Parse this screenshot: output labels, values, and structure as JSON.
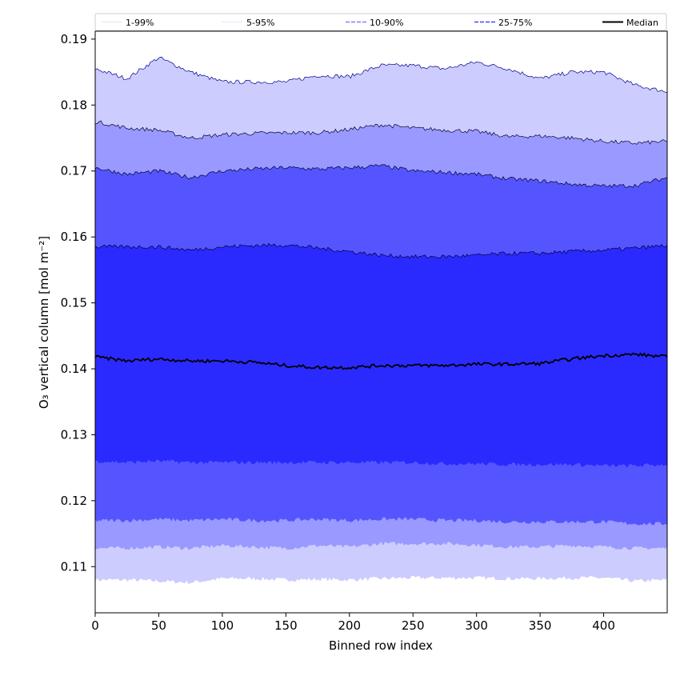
{
  "chart_data": {
    "type": "area",
    "title": "",
    "xlabel": "Binned row index",
    "ylabel": "O₃ vertical column [mol m⁻²]",
    "xlim": [
      0,
      450
    ],
    "ylim": [
      0.103,
      0.1912
    ],
    "x_ticks": [
      0,
      50,
      100,
      150,
      200,
      250,
      300,
      350,
      400
    ],
    "y_ticks": [
      0.11,
      0.12,
      0.13,
      0.14,
      0.15,
      0.16,
      0.17,
      0.18,
      0.19
    ],
    "grid": false,
    "legend_position": "top",
    "legend": [
      {
        "label": "1-99%",
        "color": "#ccccff"
      },
      {
        "label": "5-95%",
        "color": "#9999ff"
      },
      {
        "label": "10-90%",
        "color": "#5555ff"
      },
      {
        "label": "25-75%",
        "color": "#2a2aff"
      },
      {
        "label": "Median",
        "color": "#000000"
      }
    ],
    "x": [
      0,
      25,
      50,
      75,
      100,
      125,
      150,
      175,
      200,
      225,
      250,
      275,
      300,
      325,
      350,
      375,
      400,
      425,
      450
    ],
    "bands": [
      {
        "name": "1-99%",
        "color": "#ccccff",
        "lower": [
          0.108,
          0.108,
          0.1078,
          0.1076,
          0.1082,
          0.1082,
          0.108,
          0.1081,
          0.108,
          0.1082,
          0.1083,
          0.1083,
          0.1083,
          0.1082,
          0.1082,
          0.1083,
          0.1083,
          0.1078,
          0.108
        ],
        "upper": [
          0.1855,
          0.184,
          0.1872,
          0.185,
          0.1835,
          0.1835,
          0.1835,
          0.1845,
          0.1843,
          0.186,
          0.186,
          0.1855,
          0.1865,
          0.1855,
          0.184,
          0.185,
          0.185,
          0.183,
          0.182
        ]
      },
      {
        "name": "5-95%",
        "color": "#9999ff",
        "lower": [
          0.1128,
          0.1128,
          0.113,
          0.1128,
          0.1132,
          0.113,
          0.1128,
          0.1132,
          0.113,
          0.1135,
          0.1135,
          0.1135,
          0.1133,
          0.113,
          0.113,
          0.1132,
          0.113,
          0.1128,
          0.1128
        ],
        "upper": [
          0.1775,
          0.1765,
          0.1762,
          0.175,
          0.1755,
          0.1757,
          0.1758,
          0.1758,
          0.1763,
          0.177,
          0.1765,
          0.1762,
          0.176,
          0.1752,
          0.1753,
          0.175,
          0.1745,
          0.1742,
          0.1745
        ]
      },
      {
        "name": "10-90%",
        "color": "#5555ff",
        "lower": [
          0.117,
          0.117,
          0.1172,
          0.117,
          0.1172,
          0.117,
          0.117,
          0.1172,
          0.117,
          0.1172,
          0.1172,
          0.117,
          0.117,
          0.1168,
          0.1168,
          0.1168,
          0.1168,
          0.1165,
          0.1165
        ],
        "upper": [
          0.1705,
          0.1695,
          0.17,
          0.169,
          0.17,
          0.1703,
          0.1705,
          0.1703,
          0.1705,
          0.1708,
          0.17,
          0.1698,
          0.1695,
          0.1688,
          0.1685,
          0.168,
          0.1677,
          0.1678,
          0.169
        ]
      },
      {
        "name": "25-75%",
        "color": "#2a2aff",
        "lower": [
          0.126,
          0.1258,
          0.126,
          0.1258,
          0.1258,
          0.1258,
          0.1258,
          0.1258,
          0.1258,
          0.1258,
          0.1258,
          0.1256,
          0.1256,
          0.1255,
          0.1255,
          0.1255,
          0.1253,
          0.1253,
          0.1255
        ],
        "upper": [
          0.1585,
          0.1585,
          0.1585,
          0.158,
          0.1585,
          0.1587,
          0.1588,
          0.1583,
          0.1578,
          0.1572,
          0.157,
          0.157,
          0.1572,
          0.1575,
          0.1575,
          0.1578,
          0.158,
          0.1583,
          0.1587
        ]
      }
    ],
    "series": [
      {
        "name": "Median",
        "color": "#000000",
        "values": [
          0.1418,
          0.1412,
          0.1415,
          0.1412,
          0.1412,
          0.141,
          0.1405,
          0.1402,
          0.1402,
          0.1405,
          0.1405,
          0.1405,
          0.1407,
          0.1407,
          0.1408,
          0.1415,
          0.142,
          0.1422,
          0.1418
        ]
      }
    ]
  }
}
